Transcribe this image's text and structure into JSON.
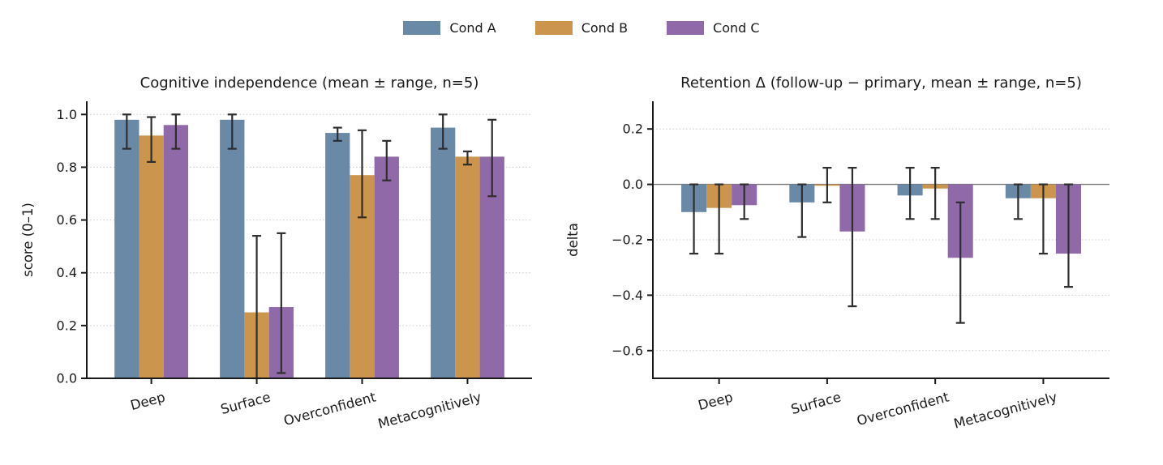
{
  "legend": {
    "items": [
      {
        "label": "Cond A",
        "color": "#6a89a7"
      },
      {
        "label": "Cond B",
        "color": "#cb954d"
      },
      {
        "label": "Cond C",
        "color": "#9069a9"
      }
    ]
  },
  "colors": {
    "background": "#ffffff",
    "error_bar": "#2e2e2e",
    "grid": "#c9c9c9",
    "axis": "#1a1a1a",
    "zero_line": "#757575",
    "text": "#1a1a1a"
  },
  "chart_data": [
    {
      "type": "bar",
      "title": "Cognitive independence (mean ± range, n=5)",
      "xlabel": "",
      "ylabel": "score (0–1)",
      "categories": [
        "Deep",
        "Surface",
        "Overconfident",
        "Metacognitively"
      ],
      "yticks": [
        0.0,
        0.2,
        0.4,
        0.6,
        0.8,
        1.0
      ],
      "ylim": [
        0,
        1.05
      ],
      "grid": true,
      "zero_line": false,
      "legend_position": "top-center-figure",
      "series": [
        {
          "name": "Cond A",
          "values": [
            0.98,
            0.98,
            0.93,
            0.95
          ],
          "err_lo": [
            0.87,
            0.87,
            0.9,
            0.87
          ],
          "err_hi": [
            1.0,
            1.0,
            0.95,
            1.0
          ]
        },
        {
          "name": "Cond B",
          "values": [
            0.92,
            0.25,
            0.77,
            0.84
          ],
          "err_lo": [
            0.82,
            0.0,
            0.61,
            0.81
          ],
          "err_hi": [
            0.99,
            0.54,
            0.94,
            0.86
          ]
        },
        {
          "name": "Cond C",
          "values": [
            0.96,
            0.27,
            0.84,
            0.84
          ],
          "err_lo": [
            0.87,
            0.02,
            0.75,
            0.69
          ],
          "err_hi": [
            1.0,
            0.55,
            0.9,
            0.98
          ]
        }
      ]
    },
    {
      "type": "bar",
      "title": "Retention Δ (follow-up − primary, mean ± range, n=5)",
      "xlabel": "",
      "ylabel": "delta",
      "categories": [
        "Deep",
        "Surface",
        "Overconfident",
        "Metacognitively"
      ],
      "yticks": [
        0.2,
        0.0,
        -0.2,
        -0.4,
        -0.6
      ],
      "ylim": [
        -0.7,
        0.3
      ],
      "grid": true,
      "zero_line": true,
      "legend_position": "none",
      "series": [
        {
          "name": "Cond A",
          "values": [
            -0.1,
            -0.065,
            -0.04,
            -0.05
          ],
          "err_lo": [
            -0.25,
            -0.19,
            -0.125,
            -0.125
          ],
          "err_hi": [
            0.0,
            0.0,
            0.06,
            0.0
          ]
        },
        {
          "name": "Cond B",
          "values": [
            -0.085,
            -0.005,
            -0.015,
            -0.05
          ],
          "err_lo": [
            -0.25,
            -0.065,
            -0.125,
            -0.25
          ],
          "err_hi": [
            0.0,
            0.06,
            0.06,
            0.0
          ]
        },
        {
          "name": "Cond C",
          "values": [
            -0.075,
            -0.17,
            -0.265,
            -0.25
          ],
          "err_lo": [
            -0.125,
            -0.44,
            -0.5,
            -0.37
          ],
          "err_hi": [
            0.0,
            0.06,
            -0.065,
            0.0
          ]
        }
      ]
    }
  ]
}
